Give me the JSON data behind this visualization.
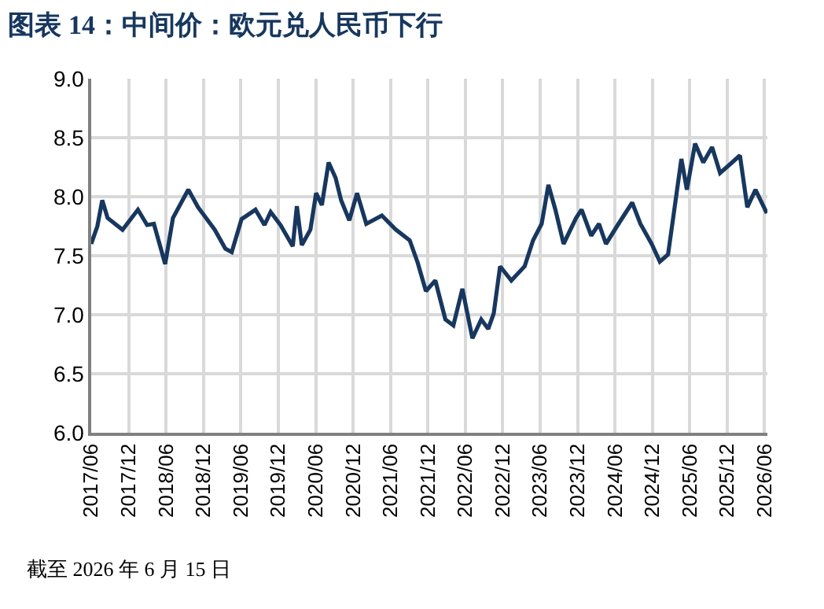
{
  "chart_data": {
    "type": "line",
    "title": "图表 14：中间价：欧元兑人民币下行",
    "annotations": [
      "截至 2026 年 6 月 15 日"
    ],
    "x": [
      "2017-06-01",
      "2017-07-01",
      "2017-07-25",
      "2017-08-20",
      "2017-11-01",
      "2018-01-15",
      "2018-03-01",
      "2018-04-03",
      "2018-05-28",
      "2018-07-05",
      "2018-09-18",
      "2018-11-05",
      "2019-01-25",
      "2019-03-18",
      "2019-04-18",
      "2019-06-05",
      "2019-08-12",
      "2019-09-25",
      "2019-10-25",
      "2019-12-12",
      "2020-02-10",
      "2020-03-01",
      "2020-03-25",
      "2020-05-06",
      "2020-06-03",
      "2020-07-01",
      "2020-08-03",
      "2020-09-06",
      "2020-10-03",
      "2020-11-12",
      "2020-12-20",
      "2021-02-03",
      "2021-04-20",
      "2021-06-28",
      "2021-09-03",
      "2021-10-12",
      "2021-11-21",
      "2022-01-06",
      "2022-02-24",
      "2022-04-04",
      "2022-05-18",
      "2022-07-06",
      "2022-08-18",
      "2022-09-21",
      "2022-10-18",
      "2022-11-18",
      "2023-01-12",
      "2023-03-18",
      "2023-04-28",
      "2023-06-09",
      "2023-07-12",
      "2023-08-15",
      "2023-09-24",
      "2023-11-24",
      "2023-12-21",
      "2024-02-06",
      "2024-03-15",
      "2024-04-18",
      "2024-06-18",
      "2024-08-24",
      "2024-10-03",
      "2024-11-27",
      "2025-01-06",
      "2025-02-15",
      "2025-03-12",
      "2025-04-21",
      "2025-05-18",
      "2025-06-27",
      "2025-08-06",
      "2025-09-18",
      "2025-10-27",
      "2025-12-18",
      "2026-02-01",
      "2026-03-09",
      "2026-04-18",
      "2026-06-12"
    ],
    "series": [
      {
        "color": "#17375e",
        "values": [
          7.6,
          7.75,
          7.97,
          7.82,
          7.72,
          7.89,
          7.76,
          7.77,
          7.43,
          7.82,
          8.06,
          7.91,
          7.72,
          7.56,
          7.53,
          7.81,
          7.89,
          7.76,
          7.87,
          7.76,
          7.58,
          7.92,
          7.59,
          7.72,
          8.03,
          7.93,
          8.29,
          8.16,
          7.97,
          7.8,
          8.03,
          7.77,
          7.84,
          7.72,
          7.63,
          7.44,
          7.2,
          7.29,
          6.96,
          6.91,
          7.22,
          6.8,
          6.96,
          6.88,
          7.01,
          7.41,
          7.29,
          7.41,
          7.63,
          7.77,
          8.1,
          7.89,
          7.6,
          7.82,
          7.89,
          7.67,
          7.77,
          7.6,
          7.77,
          7.95,
          7.77,
          7.6,
          7.45,
          7.51,
          7.82,
          8.32,
          8.06,
          8.45,
          8.29,
          8.42,
          8.2,
          8.28,
          8.35,
          7.91,
          8.06,
          7.86
        ]
      }
    ],
    "xlim": [
      "2017-06-01",
      "2026-06-15"
    ],
    "xticks": [
      {
        "value": "2017-06-01",
        "label": "2017/06"
      },
      {
        "value": "2017-12-01",
        "label": "2017/12"
      },
      {
        "value": "2018-06-01",
        "label": "2018/06"
      },
      {
        "value": "2018-12-01",
        "label": "2018/12"
      },
      {
        "value": "2019-06-01",
        "label": "2019/06"
      },
      {
        "value": "2019-12-01",
        "label": "2019/12"
      },
      {
        "value": "2020-06-01",
        "label": "2020/06"
      },
      {
        "value": "2020-12-01",
        "label": "2020/12"
      },
      {
        "value": "2021-06-01",
        "label": "2021/06"
      },
      {
        "value": "2021-12-01",
        "label": "2021/12"
      },
      {
        "value": "2022-06-01",
        "label": "2022/06"
      },
      {
        "value": "2022-12-01",
        "label": "2022/12"
      },
      {
        "value": "2023-06-01",
        "label": "2023/06"
      },
      {
        "value": "2023-12-01",
        "label": "2023/12"
      },
      {
        "value": "2024-06-01",
        "label": "2024/06"
      },
      {
        "value": "2024-12-01",
        "label": "2024/12"
      },
      {
        "value": "2025-06-01",
        "label": "2025/06"
      },
      {
        "value": "2025-12-01",
        "label": "2025/12"
      },
      {
        "value": "2026-06-01",
        "label": "2026/06"
      }
    ],
    "ylim": [
      6.0,
      9.0
    ],
    "yticks": [
      {
        "value": 6,
        "label": "6.0"
      },
      {
        "value": 6.5,
        "label": "6.5"
      },
      {
        "value": 7,
        "label": "7.0"
      },
      {
        "value": 7.5,
        "label": "7.5"
      },
      {
        "value": 8,
        "label": "8.0"
      },
      {
        "value": 8.5,
        "label": "8.5"
      },
      {
        "value": 9,
        "label": "9.0"
      }
    ],
    "grid": true,
    "marker": "none",
    "line_style": "solid"
  }
}
